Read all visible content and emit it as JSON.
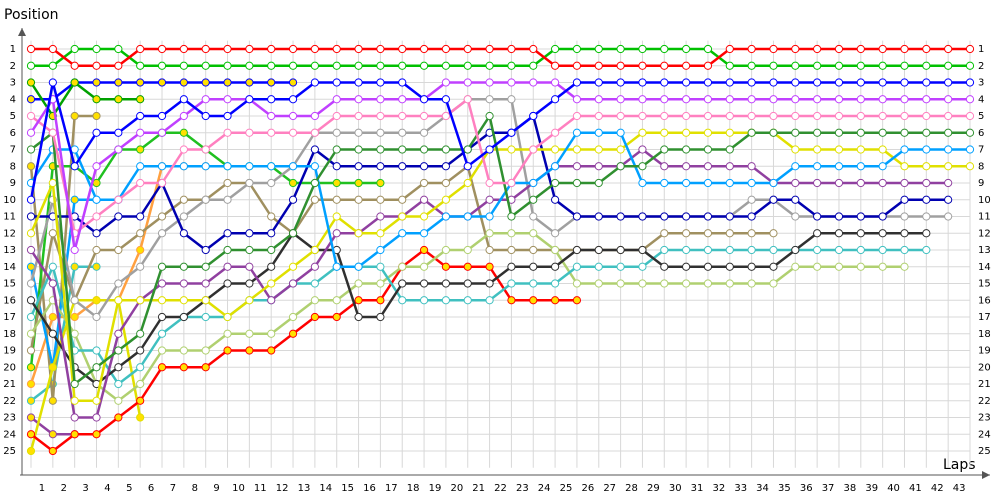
{
  "chart_data": {
    "type": "lap-chart",
    "title": "Position",
    "x_label": "Laps",
    "x": [
      0,
      1,
      2,
      3,
      4,
      5,
      6,
      7,
      8,
      9,
      10,
      11,
      12,
      13,
      14,
      15,
      16,
      17,
      18,
      19,
      20,
      21,
      22,
      23,
      24,
      25,
      26,
      27,
      28,
      29,
      30,
      31,
      32,
      33,
      34,
      35,
      36,
      37,
      38,
      39,
      40,
      41,
      42,
      43
    ],
    "xlim": [
      0,
      43
    ],
    "xticks": [
      1,
      2,
      3,
      4,
      5,
      6,
      7,
      8,
      9,
      10,
      11,
      12,
      13,
      14,
      15,
      16,
      17,
      18,
      19,
      20,
      21,
      22,
      23,
      24,
      25,
      26,
      27,
      28,
      29,
      30,
      31,
      32,
      33,
      34,
      35,
      36,
      37,
      38,
      39,
      40,
      41,
      42,
      43
    ],
    "ylim": [
      0.5,
      26
    ],
    "y_inverted": true,
    "yticks": [
      1,
      2,
      3,
      4,
      5,
      6,
      7,
      8,
      9,
      10,
      11,
      12,
      13,
      14,
      15,
      16,
      17,
      18,
      19,
      20,
      21,
      22,
      23,
      24,
      25
    ],
    "grid": true,
    "series": [
      {
        "color": "#ff0000",
        "values": [
          1,
          1,
          2,
          2,
          2,
          1,
          1,
          1,
          1,
          1,
          1,
          1,
          1,
          1,
          1,
          1,
          1,
          1,
          1,
          1,
          1,
          1,
          1,
          1,
          2,
          2,
          2,
          2,
          2,
          2,
          2,
          2,
          1,
          1,
          1,
          1,
          1,
          1,
          1,
          1,
          1,
          1,
          1,
          1
        ]
      },
      {
        "color": "#00c000",
        "values": [
          2,
          2,
          1,
          1,
          1,
          2,
          2,
          2,
          2,
          2,
          2,
          2,
          2,
          2,
          2,
          2,
          2,
          2,
          2,
          2,
          2,
          2,
          2,
          2,
          1,
          1,
          1,
          1,
          1,
          1,
          1,
          1,
          2,
          2,
          2,
          2,
          2,
          2,
          2,
          2,
          2,
          2,
          2,
          2
        ]
      },
      {
        "color": "#0000ff",
        "values": [
          10,
          3,
          8,
          6,
          6,
          5,
          5,
          4,
          5,
          5,
          4,
          4,
          4,
          3,
          3,
          3,
          3,
          3,
          4,
          4,
          8,
          7,
          6,
          5,
          4,
          3,
          3,
          3,
          3,
          3,
          3,
          3,
          3,
          3,
          3,
          3,
          3,
          3,
          3,
          3,
          3,
          3,
          3,
          3
        ]
      },
      {
        "color": "#c040ff",
        "values": [
          6,
          4,
          13,
          8,
          7,
          6,
          6,
          5,
          4,
          4,
          4,
          5,
          5,
          5,
          4,
          4,
          4,
          4,
          4,
          3,
          3,
          3,
          3,
          3,
          3,
          4,
          4,
          4,
          4,
          4,
          4,
          4,
          4,
          4,
          4,
          4,
          4,
          4,
          4,
          4,
          4,
          4,
          4,
          4
        ]
      },
      {
        "color": "#ff80c0",
        "values": [
          5,
          6,
          12,
          11,
          10,
          9,
          9,
          7,
          7,
          6,
          6,
          6,
          6,
          6,
          5,
          5,
          5,
          5,
          5,
          5,
          4,
          9,
          9,
          7,
          6,
          5,
          5,
          5,
          5,
          5,
          5,
          5,
          5,
          5,
          5,
          5,
          5,
          5,
          5,
          5,
          5,
          5,
          5,
          5
        ]
      },
      {
        "color": "#309030",
        "values": [
          7,
          6,
          21,
          20,
          19,
          18,
          14,
          14,
          14,
          13,
          13,
          13,
          12,
          9,
          7,
          7,
          7,
          7,
          7,
          7,
          7,
          5,
          11,
          10,
          9,
          9,
          9,
          8,
          8,
          7,
          7,
          7,
          7,
          6,
          6,
          6,
          6,
          6,
          6,
          6,
          6,
          6,
          6,
          6
        ]
      },
      {
        "color": "#00a0ff",
        "values": [
          9,
          7,
          7,
          10,
          10,
          8,
          8,
          8,
          8,
          8,
          8,
          8,
          8,
          8,
          14,
          14,
          13,
          12,
          12,
          11,
          11,
          11,
          9,
          9,
          8,
          6,
          6,
          6,
          9,
          9,
          9,
          9,
          9,
          9,
          9,
          8,
          8,
          8,
          8,
          8,
          7,
          7,
          7,
          7
        ]
      },
      {
        "color": "#e0e000",
        "values": [
          12,
          9,
          22,
          22,
          16,
          16,
          16,
          16,
          16,
          17,
          16,
          15,
          14,
          13,
          11,
          12,
          12,
          11,
          11,
          10,
          9,
          7,
          7,
          7,
          7,
          7,
          7,
          7,
          6,
          6,
          6,
          6,
          6,
          6,
          6,
          7,
          7,
          7,
          7,
          7,
          8,
          8,
          8,
          8
        ]
      },
      {
        "color": "#9040a0",
        "values": [
          13,
          15,
          23,
          23,
          18,
          16,
          15,
          15,
          15,
          14,
          14,
          16,
          15,
          14,
          12,
          12,
          11,
          11,
          10,
          11,
          11,
          10,
          10,
          9,
          8,
          8,
          8,
          8,
          7,
          8,
          8,
          8,
          8,
          8,
          9,
          9,
          9,
          9,
          9,
          9,
          9,
          9,
          9,
          null
        ]
      },
      {
        "color": "#0000b0",
        "values": [
          11,
          11,
          11,
          12,
          11,
          11,
          9,
          12,
          13,
          12,
          12,
          12,
          10,
          7,
          8,
          8,
          8,
          8,
          8,
          8,
          7,
          6,
          6,
          5,
          10,
          11,
          11,
          11,
          11,
          11,
          11,
          11,
          11,
          11,
          10,
          10,
          11,
          11,
          11,
          11,
          10,
          10,
          10,
          null
        ]
      },
      {
        "color": "#a0a0a0",
        "values": [
          15,
          10,
          16,
          17,
          15,
          14,
          12,
          11,
          10,
          10,
          9,
          9,
          8,
          6,
          6,
          6,
          6,
          6,
          6,
          5,
          4,
          4,
          4,
          11,
          12,
          11,
          11,
          11,
          11,
          11,
          11,
          11,
          11,
          10,
          10,
          11,
          11,
          11,
          11,
          11,
          11,
          11,
          11,
          null
        ]
      },
      {
        "color": "#303030",
        "values": [
          16,
          18,
          20,
          21,
          20,
          19,
          17,
          17,
          16,
          15,
          15,
          14,
          12,
          13,
          13,
          17,
          17,
          15,
          15,
          15,
          15,
          15,
          14,
          14,
          14,
          13,
          13,
          13,
          13,
          14,
          14,
          14,
          14,
          14,
          14,
          13,
          12,
          12,
          12,
          12,
          12,
          12,
          null,
          null
        ]
      },
      {
        "color": "#40c0c0",
        "values": [
          17,
          14,
          19,
          19,
          21,
          20,
          18,
          17,
          17,
          17,
          16,
          16,
          15,
          15,
          14,
          14,
          14,
          16,
          16,
          16,
          16,
          16,
          15,
          15,
          15,
          14,
          14,
          14,
          14,
          13,
          13,
          13,
          13,
          13,
          13,
          13,
          13,
          13,
          13,
          13,
          13,
          13,
          null,
          null
        ]
      },
      {
        "color": "#b0d070",
        "values": [
          18,
          16,
          18,
          21,
          22,
          21,
          19,
          19,
          19,
          18,
          18,
          18,
          17,
          16,
          16,
          15,
          15,
          14,
          14,
          13,
          13,
          12,
          12,
          12,
          13,
          15,
          15,
          15,
          15,
          15,
          15,
          15,
          15,
          15,
          15,
          14,
          14,
          14,
          14,
          14,
          14,
          null,
          null,
          null
        ]
      },
      {
        "color": "#a09060",
        "values": [
          19,
          12,
          16,
          13,
          13,
          12,
          11,
          10,
          10,
          9,
          9,
          11,
          12,
          10,
          10,
          10,
          10,
          10,
          9,
          9,
          8,
          13,
          13,
          13,
          13,
          13,
          13,
          13,
          13,
          12,
          12,
          12,
          12,
          12,
          12,
          null,
          null,
          null,
          null,
          null,
          null,
          null,
          null,
          null
        ]
      },
      {
        "color": "#ff0000",
        "marker_fill": "#ffe000",
        "values": [
          24,
          25,
          24,
          24,
          23,
          22,
          20,
          20,
          20,
          19,
          19,
          19,
          18,
          17,
          17,
          16,
          16,
          14,
          13,
          14,
          14,
          14,
          16,
          16,
          16,
          16,
          null,
          null,
          null,
          null,
          null,
          null,
          null,
          null,
          null,
          null,
          null,
          null,
          null,
          null,
          null,
          null,
          null,
          null
        ]
      },
      {
        "color": "#20c020",
        "marker_fill": "#ffe000",
        "values": [
          20,
          8,
          8,
          9,
          7,
          7,
          6,
          6,
          7,
          8,
          8,
          8,
          9,
          9,
          9,
          9,
          9,
          null,
          null,
          null,
          null,
          null,
          null,
          null,
          null,
          null,
          null,
          null,
          null,
          null,
          null,
          null,
          null,
          null,
          null,
          null,
          null,
          null,
          null,
          null,
          null,
          null,
          null,
          null
        ]
      },
      {
        "color": "#e0e000",
        "marker_fill": "#ffe000",
        "values": [
          25,
          20,
          16,
          16,
          16,
          23,
          null,
          null,
          null,
          null,
          null,
          null,
          null,
          null,
          null,
          null,
          null,
          null,
          null,
          null,
          null,
          null,
          null,
          null,
          null,
          null,
          null,
          null,
          null,
          null,
          null,
          null,
          null,
          null,
          null,
          null,
          null,
          null,
          null,
          null,
          null,
          null,
          null,
          null
        ]
      },
      {
        "color": "#00a000",
        "marker_fill": "#ffe000",
        "values": [
          3,
          5,
          3,
          4,
          4,
          4,
          null,
          null,
          null,
          null,
          null,
          null,
          null,
          null,
          null,
          null,
          null,
          null,
          null,
          null,
          null,
          null,
          null,
          null,
          null,
          null,
          null,
          null,
          null,
          null,
          null,
          null,
          null,
          null,
          null,
          null,
          null,
          null,
          null,
          null,
          null,
          null,
          null,
          null
        ]
      },
      {
        "color": "#00a0ff",
        "marker_fill": "#ffe000",
        "values": [
          14,
          20,
          10,
          10,
          10,
          null,
          null,
          null,
          null,
          null,
          null,
          null,
          null,
          null,
          null,
          null,
          null,
          null,
          null,
          null,
          null,
          null,
          null,
          null,
          null,
          null,
          null,
          null,
          null,
          null,
          null,
          null,
          null,
          null,
          null,
          null,
          null,
          null,
          null,
          null,
          null,
          null,
          null,
          null
        ]
      },
      {
        "color": "#a09060",
        "marker_fill": "#ffe000",
        "values": [
          8,
          22,
          5,
          5,
          null,
          null,
          null,
          null,
          null,
          null,
          null,
          null,
          null,
          null,
          null,
          null,
          null,
          null,
          null,
          null,
          null,
          null,
          null,
          null,
          null,
          null,
          null,
          null,
          null,
          null,
          null,
          null,
          null,
          null,
          null,
          null,
          null,
          null,
          null,
          null,
          null,
          null,
          null,
          null
        ]
      },
      {
        "color": "#0000ff",
        "marker_fill": "#ffe000",
        "values": [
          4,
          4,
          3,
          3,
          3,
          3,
          3,
          3,
          3,
          3,
          3,
          3,
          3,
          null,
          null,
          null,
          null,
          null,
          null,
          null,
          null,
          null,
          null,
          null,
          null,
          null,
          null,
          null,
          null,
          null,
          null,
          null,
          null,
          null,
          null,
          null,
          null,
          null,
          null,
          null,
          null,
          null,
          null,
          null
        ]
      },
      {
        "color": "#ffa040",
        "marker_fill": "#ffe000",
        "values": [
          21,
          17,
          17,
          16,
          16,
          13,
          8,
          8,
          8,
          null,
          null,
          null,
          null,
          null,
          null,
          null,
          null,
          null,
          null,
          null,
          null,
          null,
          null,
          null,
          null,
          null,
          null,
          null,
          null,
          null,
          null,
          null,
          null,
          null,
          null,
          null,
          null,
          null,
          null,
          null,
          null,
          null,
          null,
          null
        ]
      },
      {
        "color": "#9040a0",
        "marker_fill": "#ffe000",
        "values": [
          23,
          24,
          24,
          null,
          null,
          null,
          null,
          null,
          null,
          null,
          null,
          null,
          null,
          null,
          null,
          null,
          null,
          null,
          null,
          null,
          null,
          null,
          null,
          null,
          null,
          null,
          null,
          null,
          null,
          null,
          null,
          null,
          null,
          null,
          null,
          null,
          null,
          null,
          null,
          null,
          null,
          null,
          null,
          null
        ]
      },
      {
        "color": "#40c0c0",
        "marker_fill": "#ffe000",
        "values": [
          22,
          21,
          14,
          14,
          null,
          null,
          null,
          null,
          null,
          null,
          null,
          null,
          null,
          null,
          null,
          null,
          null,
          null,
          null,
          null,
          null,
          null,
          null,
          null,
          null,
          null,
          null,
          null,
          null,
          null,
          null,
          null,
          null,
          null,
          null,
          null,
          null,
          null,
          null,
          null,
          null,
          null,
          null,
          null
        ]
      }
    ]
  }
}
